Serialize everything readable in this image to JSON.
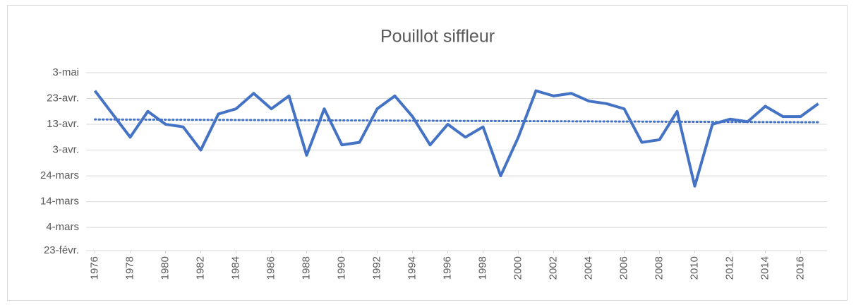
{
  "chart_data": {
    "type": "line",
    "title": "Pouillot siffleur",
    "x": [
      1976,
      1977,
      1978,
      1979,
      1980,
      1981,
      1982,
      1983,
      1984,
      1985,
      1986,
      1987,
      1988,
      1989,
      1990,
      1991,
      1992,
      1993,
      1994,
      1995,
      1996,
      1997,
      1998,
      1999,
      2000,
      2001,
      2002,
      2003,
      2004,
      2005,
      2006,
      2007,
      2008,
      2009,
      2010,
      2011,
      2012,
      2013,
      2014,
      2015,
      2016,
      2017
    ],
    "values": [
      116,
      107,
      98,
      108,
      103,
      102,
      93,
      107,
      109,
      115,
      109,
      114,
      91,
      109,
      95,
      96,
      109,
      114,
      106,
      95,
      103,
      98,
      102,
      83,
      98,
      116,
      114,
      115,
      112,
      111,
      109,
      96,
      97,
      108,
      79,
      103,
      105,
      104,
      110,
      106,
      106,
      111
    ],
    "color": "#4472c4",
    "trendline": "linear",
    "xlim": [
      1975.5,
      2017.5
    ],
    "xticks": [
      1976,
      1978,
      1980,
      1982,
      1984,
      1986,
      1988,
      1990,
      1992,
      1994,
      1996,
      1998,
      2000,
      2002,
      2004,
      2006,
      2008,
      2010,
      2012,
      2014,
      2016
    ],
    "ylim": [
      54,
      123
    ],
    "yticks": [
      {
        "value": 54,
        "label": "23-févr."
      },
      {
        "value": 63,
        "label": "4-mars"
      },
      {
        "value": 73,
        "label": "14-mars"
      },
      {
        "value": 83,
        "label": "24-mars"
      },
      {
        "value": 93,
        "label": "3-avr."
      },
      {
        "value": 103,
        "label": "13-avr."
      },
      {
        "value": 113,
        "label": "23-avr."
      },
      {
        "value": 123,
        "label": "3-mai"
      }
    ],
    "grid": true
  }
}
